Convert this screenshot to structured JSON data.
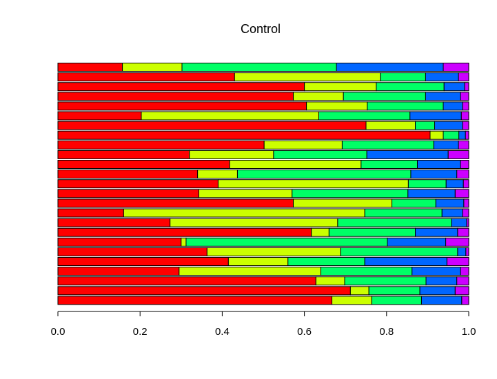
{
  "chart_data": {
    "type": "bar",
    "orientation": "horizontal",
    "stacked": true,
    "title": "Control",
    "xlabel": "",
    "ylabel": "",
    "xlim": [
      0,
      1
    ],
    "xticks": [
      "0.0",
      "0.2",
      "0.4",
      "0.6",
      "0.8",
      "1.0"
    ],
    "grid": false,
    "legend": "none",
    "segment_colors": [
      "#ff0000",
      "#ccff00",
      "#00ff66",
      "#0066ff",
      "#cc00ff"
    ],
    "rows_top_to_bottom": [
      [
        0.157,
        0.145,
        0.376,
        0.26,
        0.062
      ],
      [
        0.43,
        0.355,
        0.11,
        0.08,
        0.025
      ],
      [
        0.6,
        0.175,
        0.165,
        0.05,
        0.01
      ],
      [
        0.573,
        0.122,
        0.2,
        0.085,
        0.02
      ],
      [
        0.605,
        0.148,
        0.185,
        0.047,
        0.015
      ],
      [
        0.203,
        0.432,
        0.222,
        0.125,
        0.018
      ],
      [
        0.75,
        0.12,
        0.047,
        0.068,
        0.015
      ],
      [
        0.906,
        0.032,
        0.038,
        0.016,
        0.008
      ],
      [
        0.502,
        0.19,
        0.223,
        0.06,
        0.025
      ],
      [
        0.32,
        0.205,
        0.227,
        0.198,
        0.05
      ],
      [
        0.418,
        0.32,
        0.137,
        0.105,
        0.02
      ],
      [
        0.34,
        0.097,
        0.422,
        0.112,
        0.029
      ],
      [
        0.39,
        0.463,
        0.092,
        0.042,
        0.013
      ],
      [
        0.343,
        0.227,
        0.282,
        0.115,
        0.033
      ],
      [
        0.573,
        0.24,
        0.107,
        0.068,
        0.012
      ],
      [
        0.16,
        0.587,
        0.188,
        0.05,
        0.015
      ],
      [
        0.273,
        0.408,
        0.277,
        0.037,
        0.005
      ],
      [
        0.617,
        0.043,
        0.21,
        0.103,
        0.027
      ],
      [
        0.3,
        0.012,
        0.49,
        0.142,
        0.056
      ],
      [
        0.363,
        0.325,
        0.285,
        0.02,
        0.007
      ],
      [
        0.415,
        0.145,
        0.187,
        0.2,
        0.053
      ],
      [
        0.295,
        0.345,
        0.222,
        0.118,
        0.02
      ],
      [
        0.628,
        0.07,
        0.198,
        0.075,
        0.029
      ],
      [
        0.712,
        0.045,
        0.124,
        0.086,
        0.033
      ],
      [
        0.667,
        0.097,
        0.121,
        0.098,
        0.017
      ]
    ]
  }
}
